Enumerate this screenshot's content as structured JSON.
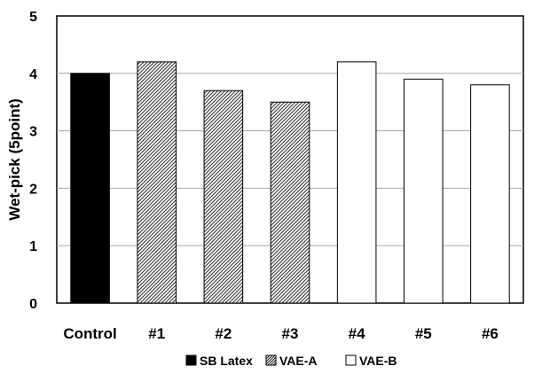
{
  "chart_data": {
    "type": "bar",
    "categories": [
      "Control",
      "#1",
      "#2",
      "#3",
      "#4",
      "#5",
      "#6"
    ],
    "values": [
      4.0,
      4.2,
      3.7,
      3.5,
      4.2,
      3.9,
      3.8
    ],
    "groups": [
      "SB Latex",
      "VAE-A",
      "VAE-A",
      "VAE-A",
      "VAE-B",
      "VAE-B",
      "VAE-B"
    ],
    "title": "",
    "xlabel": "",
    "ylabel": "Wet-pick (5point)",
    "ylim": [
      0,
      5
    ],
    "yticks": [
      0,
      1,
      2,
      3,
      4,
      5
    ],
    "grid": true,
    "legend_position": "bottom",
    "legend": [
      {
        "name": "SB Latex",
        "style": "solid",
        "color": "#000000"
      },
      {
        "name": "VAE-A",
        "style": "hatched",
        "color": "#555555"
      },
      {
        "name": "VAE-B",
        "style": "empty",
        "color": "#ffffff"
      }
    ]
  }
}
